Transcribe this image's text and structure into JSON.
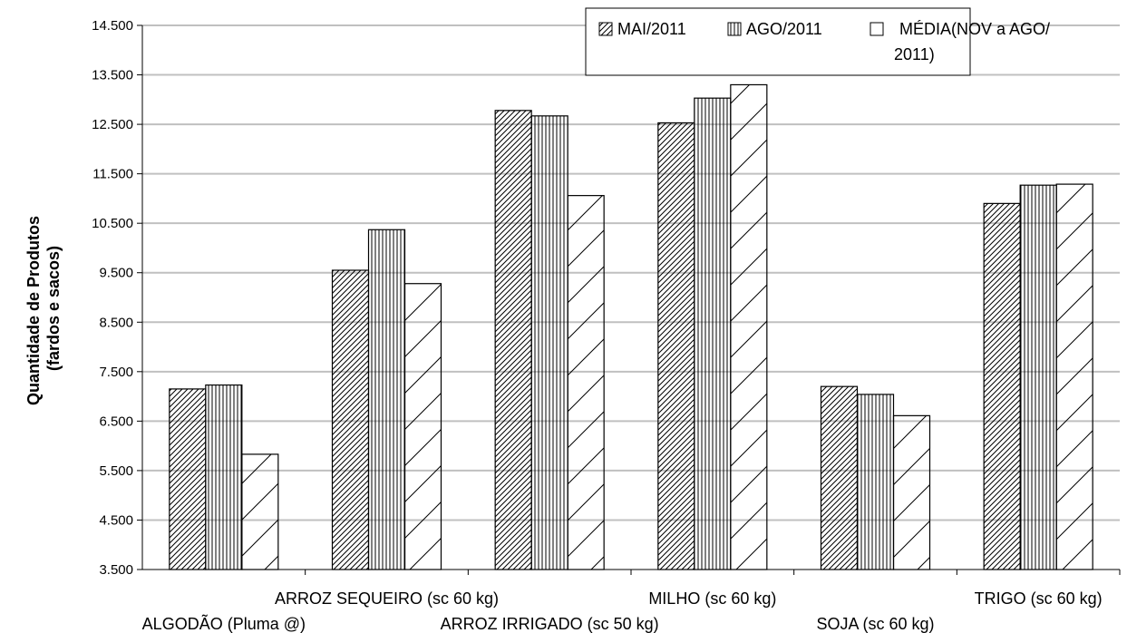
{
  "chart_data": {
    "type": "bar",
    "title": "",
    "xlabel": "",
    "ylabel_lines": [
      "Quantidade de Produtos",
      "(fardos e sacos)"
    ],
    "ylim": [
      3500,
      14500
    ],
    "yticks": [
      "3.500",
      "4.500",
      "5.500",
      "6.500",
      "7.500",
      "8.500",
      "9.500",
      "10.500",
      "11.500",
      "12.500",
      "13.500",
      "14.500"
    ],
    "ytick_values": [
      3500,
      4500,
      5500,
      6500,
      7500,
      8500,
      9500,
      10500,
      11500,
      12500,
      13500,
      14500
    ],
    "grid": "horizontal",
    "legend_position": "top-right",
    "categories": [
      "ALGODÃO (Pluma @)",
      "ARROZ SEQUEIRO (sc 60 kg)",
      "ARROZ IRRIGADO (sc 50 kg)",
      "MILHO (sc 60 kg)",
      "SOJA (sc 60 kg)",
      "TRIGO (sc 60 kg)"
    ],
    "series": [
      {
        "name": "MAI/2011",
        "pattern": "dense-diagonal",
        "values": [
          7150,
          9550,
          12780,
          12530,
          7200,
          10900
        ]
      },
      {
        "name": "AGO/2011",
        "pattern": "vertical-lines",
        "values": [
          7230,
          10370,
          12670,
          13030,
          7040,
          11270
        ]
      },
      {
        "name": "MÉDIA(NOV a AGO/ 2011)",
        "name_lines": [
          "MÉDIA(NOV a AGO/",
          "2011)"
        ],
        "pattern": "sparse-diagonal",
        "values": [
          5830,
          9280,
          11060,
          13300,
          6610,
          11290
        ]
      }
    ],
    "colors": {
      "bar_fill": "#ffffff",
      "bar_stroke": "#000000",
      "gridline": "#c0c0c0"
    }
  }
}
